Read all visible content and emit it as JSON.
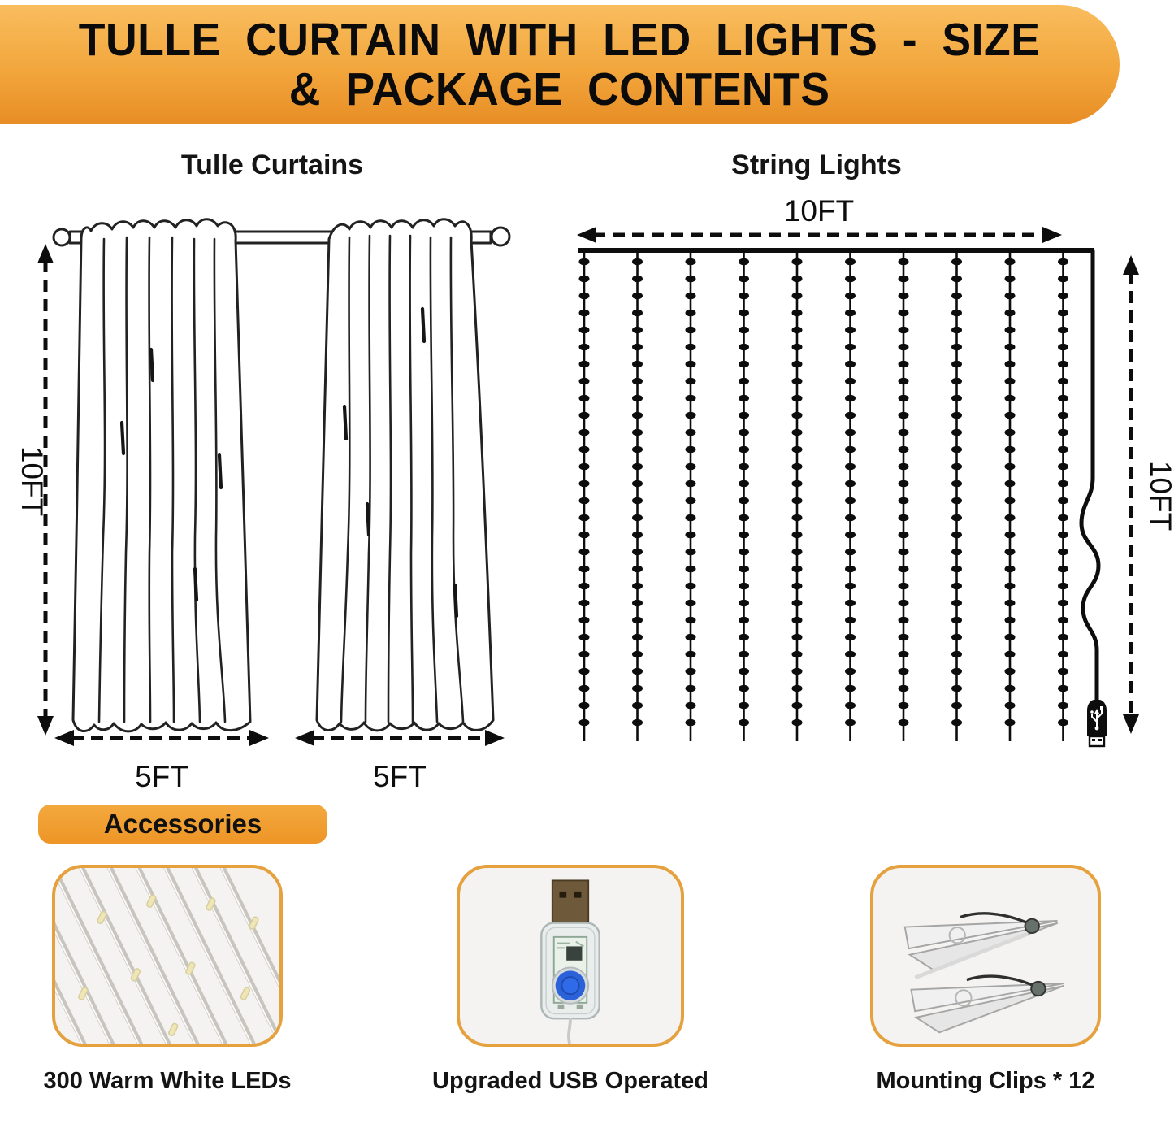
{
  "banner": {
    "title_line1": "TULLE CURTAIN WITH LED LIGHTS - SIZE",
    "title_line2": "& PACKAGE CONTENTS"
  },
  "curtains": {
    "heading": "Tulle Curtains",
    "height_label": "10FT",
    "panel_width_labels": [
      "5FT",
      "5FT"
    ]
  },
  "lights": {
    "heading": "String Lights",
    "top_width_label": "10FT",
    "side_height_label": "10FT",
    "diagram": {
      "strand_count": 10,
      "beads_per_strand": 28
    }
  },
  "accessories": {
    "heading": "Accessories",
    "items": [
      {
        "icon": "led-strings-icon",
        "caption": "300 Warm White LEDs"
      },
      {
        "icon": "usb-controller-icon",
        "caption": "Upgraded USB Operated"
      },
      {
        "icon": "mounting-clips-icon",
        "caption": "Mounting Clips * 12"
      }
    ]
  },
  "colors": {
    "banner_gradient_top": "#F9BD5E",
    "banner_gradient_bottom": "#E88D26",
    "accent_orange": "#F09D31",
    "card_border": "#E5A13D",
    "line_black": "#0D0D0D",
    "warm_white_led": "#EFE6B8"
  }
}
